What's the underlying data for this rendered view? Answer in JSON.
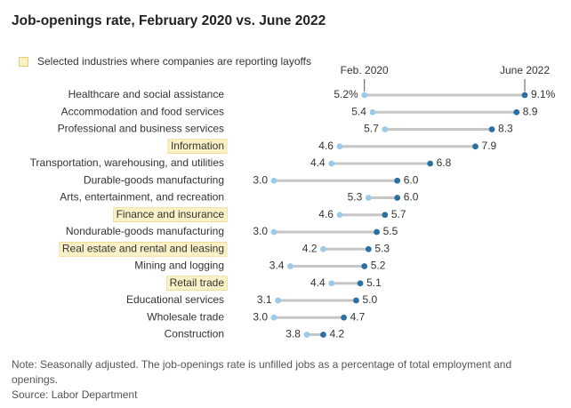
{
  "title": "Job-openings rate, February 2020 vs. June 2022",
  "legend": "Selected industries where companies are reporting layoffs",
  "colors": {
    "feb_dot": "#9ccbe9",
    "jun_dot": "#2b6fa3",
    "connector": "#c6c6c6",
    "highlight_fill": "#fbf1c6",
    "highlight_border": "#e7cf72"
  },
  "chart_data": {
    "type": "dumbbell",
    "title": "Job-openings rate, February 2020 vs. June 2022",
    "series": [
      {
        "name": "Feb. 2020",
        "values": [
          5.2,
          5.4,
          5.7,
          4.6,
          4.4,
          3.0,
          5.3,
          4.6,
          3.0,
          4.2,
          3.4,
          4.4,
          3.1,
          3.0,
          3.8
        ]
      },
      {
        "name": "June 2022",
        "values": [
          9.1,
          8.9,
          8.3,
          7.9,
          6.8,
          6.0,
          6.0,
          5.7,
          5.5,
          5.3,
          5.2,
          5.1,
          5.0,
          4.7,
          4.2
        ]
      }
    ],
    "categories": [
      "Healthcare and social assistance",
      "Accommodation and food services",
      "Professional and business services",
      "Information",
      "Transportation, warehousing, and utilities",
      "Durable-goods manufacturing",
      "Arts, entertainment, and recreation",
      "Finance and insurance",
      "Nondurable-goods manufacturing",
      "Real estate and rental and leasing",
      "Mining and logging",
      "Retail trade",
      "Educational services",
      "Wholesale trade",
      "Construction"
    ],
    "highlighted": [
      false,
      false,
      false,
      true,
      false,
      false,
      false,
      true,
      false,
      true,
      false,
      true,
      false,
      false,
      false
    ],
    "feb_labels": [
      "5.2%",
      "5.4",
      "5.7",
      "4.6",
      "4.4",
      "3.0",
      "5.3",
      "4.6",
      "3.0",
      "4.2",
      "3.4",
      "4.4",
      "3.1",
      "3.0",
      "3.8"
    ],
    "jun_labels": [
      "9.1%",
      "8.9",
      "8.3",
      "7.9",
      "6.8",
      "6.0",
      "6.0",
      "5.7",
      "5.5",
      "5.3",
      "5.2",
      "5.1",
      "5.0",
      "4.7",
      "4.2"
    ],
    "xlim": [
      3.0,
      9.1
    ],
    "grid": false
  },
  "footer": {
    "note_line1": "Note: Seasonally adjusted. The job-openings rate is unfilled jobs as a percentage of total employment and",
    "note_line2": "openings.",
    "source": "Source: Labor Department"
  }
}
